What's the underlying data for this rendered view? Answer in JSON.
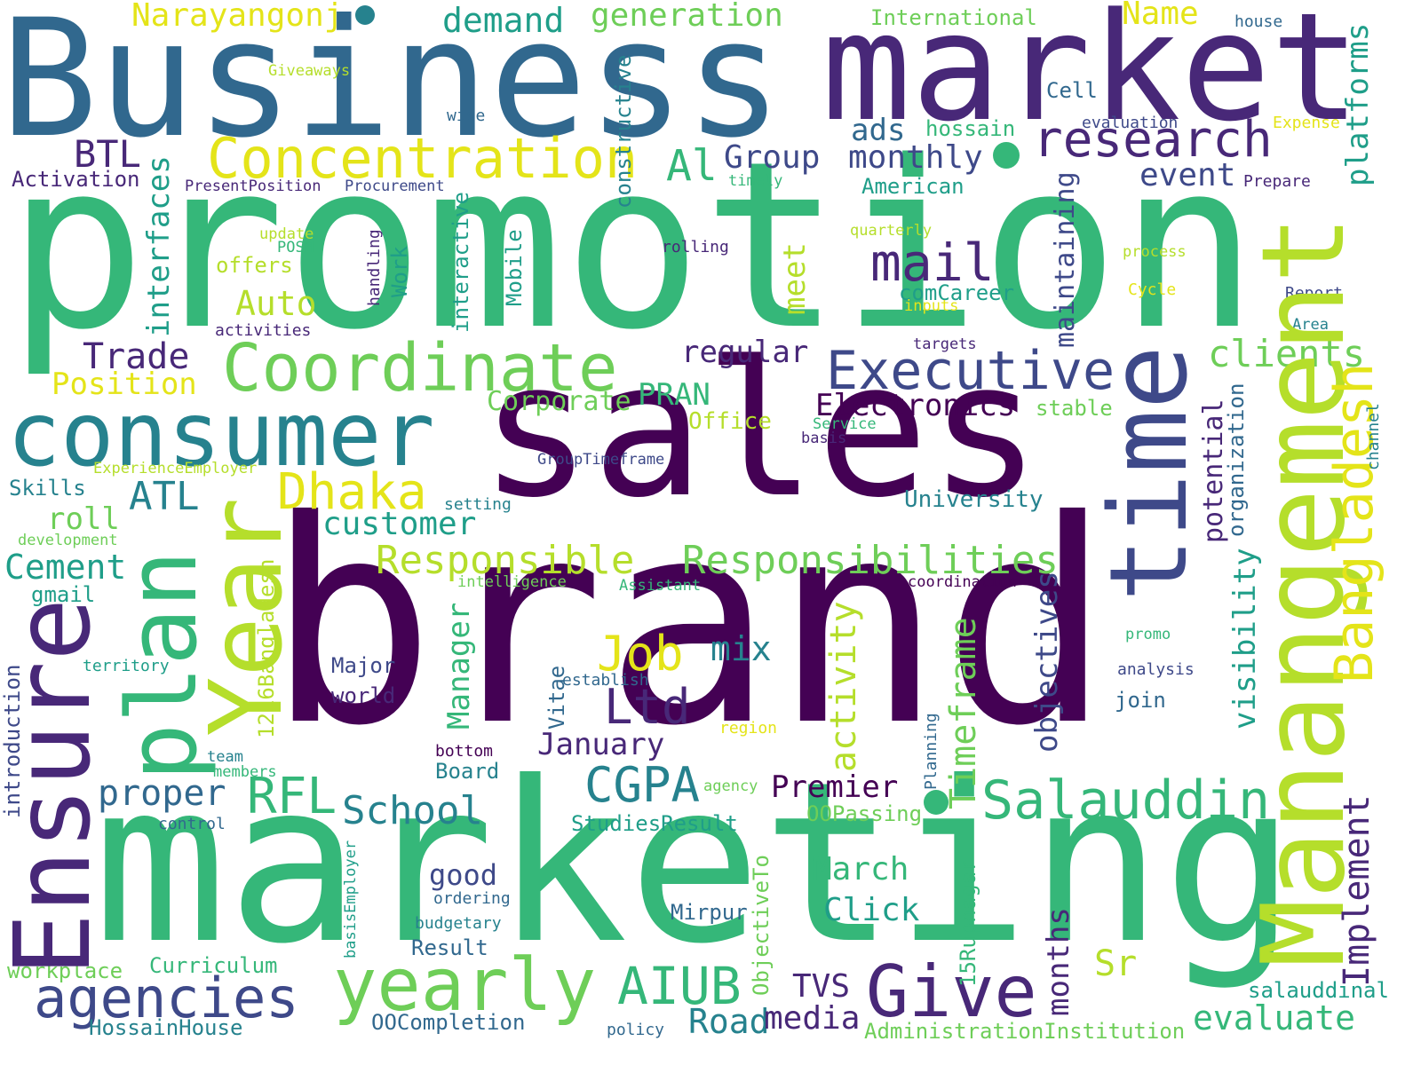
{
  "palette": {
    "dark_purple": "#440154",
    "purple": "#482878",
    "indigo": "#3e4989",
    "blue": "#31688e",
    "teal": "#26828e",
    "sea_green": "#1f9e89",
    "green": "#35b779",
    "light_green": "#6ece58",
    "lime": "#b5de2b",
    "yellow": "#e4e419"
  },
  "words": [
    "Business",
    "market",
    "promotion",
    "sales",
    "brand",
    "marketing",
    "consumer",
    "Coordinate",
    "time",
    "Manangement",
    "plan",
    "Year",
    "Ensure",
    "yearly",
    "Give",
    "research",
    "Concentration",
    "Executive",
    "Bangladesh",
    "CGPA",
    "Salauddin",
    "agencies",
    "Dhaka",
    "mail",
    "Job",
    "Ltd",
    "RFL",
    "Trade",
    "ATL",
    "Position",
    "AIUB",
    "Responsible",
    "Responsibilities",
    "Narayangonj",
    "demand",
    "generation",
    "International",
    "Name",
    "house",
    "platforms",
    "Giveaways",
    "wise",
    "Cell",
    "hossain",
    "evaluation",
    "Expense",
    "BTL",
    "Activation",
    "interfaces",
    "PresentPosition",
    "Procurement",
    "constructive",
    "Al",
    "Group",
    "monthly",
    "ads",
    "timely",
    "American",
    "event",
    "Prepare",
    "update",
    "POSM",
    "handling",
    "offers",
    "Auto",
    "activities",
    "Work",
    "interactive",
    "Mobile",
    "rolling",
    "meet",
    "quarterly",
    "maintaining",
    "process",
    "comCareer",
    "inputs",
    "Cycle",
    "Report",
    "Area",
    "targets",
    "regular",
    "clients",
    "Corporate",
    "PRAN",
    "Electronics",
    "stable",
    "Office",
    "Service",
    "basis",
    "channel",
    "ExperienceEmployer",
    "GroupTimeframe",
    "Skills",
    "roll",
    "setting",
    "customer",
    "University",
    "potential",
    "organization",
    "development",
    "Cement",
    "gmail",
    "1216Bangladesh",
    "intelligence",
    "Assistant",
    "coordination",
    "Manager",
    "activity",
    "visibility",
    "promo",
    "mix",
    "Major",
    "territory",
    "establish",
    "analysis",
    "objectives",
    "Timeframe",
    "introduction",
    "world",
    "Vitae",
    "January",
    "join",
    "region",
    "bottom",
    "team",
    "members",
    "Board",
    "Planning",
    "proper",
    "agency",
    "Premier",
    "Implement",
    "control",
    "School",
    "StudiesResult",
    "OOPassing",
    "March",
    "good",
    "ordering",
    "basisEmployer",
    "Click",
    "Mirpur",
    "budgetary",
    "ObjectiveTo",
    "15Rupnagar",
    "months",
    "workplace",
    "Curriculum",
    "Result",
    "Sr",
    "TVS",
    "salauddinal",
    "HossainHouse",
    "OOCompletion",
    "Road",
    "media",
    "policy",
    "evaluate",
    "AdministrationInstitution"
  ]
}
